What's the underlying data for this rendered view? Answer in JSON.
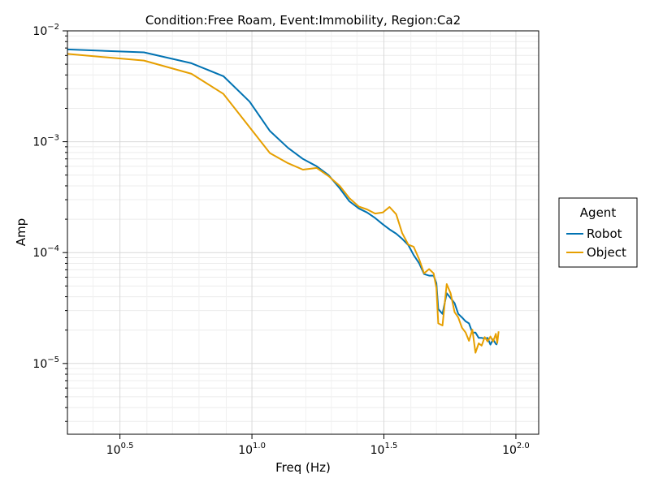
{
  "chart_data": {
    "type": "line",
    "title": "Condition:Free Roam, Event:Immobility, Region:Ca2",
    "xlabel": "Freq (Hz)",
    "ylabel": "Amp",
    "x_scale": "log10",
    "y_scale": "log10",
    "xlim": [
      2,
      122
    ],
    "ylim": [
      2.3e-06,
      0.01
    ],
    "x_ticks": [
      {
        "value": 3.162,
        "base": "10",
        "exp": "0.5"
      },
      {
        "value": 10,
        "base": "10",
        "exp": "1.0"
      },
      {
        "value": 31.62,
        "base": "10",
        "exp": "1.5"
      },
      {
        "value": 100,
        "base": "10",
        "exp": "2.0"
      }
    ],
    "y_ticks": [
      {
        "value": 1e-05,
        "base": "10",
        "exp": "−5"
      },
      {
        "value": 0.0001,
        "base": "10",
        "exp": "−4"
      },
      {
        "value": 0.001,
        "base": "10",
        "exp": "−3"
      },
      {
        "value": 0.01,
        "base": "10",
        "exp": "−2"
      }
    ],
    "grid": true,
    "legend": {
      "title": "Agent",
      "placement": "right"
    },
    "series": [
      {
        "name": "Robot",
        "color": "#0072b2",
        "points": [
          [
            2.0,
            0.0068
          ],
          [
            3.9,
            0.0064
          ],
          [
            5.9,
            0.0051
          ],
          [
            7.8,
            0.0039
          ],
          [
            9.8,
            0.0023
          ],
          [
            11.7,
            0.00125
          ],
          [
            13.7,
            0.00088
          ],
          [
            15.6,
            0.0007
          ],
          [
            17.6,
            0.0006
          ],
          [
            19.5,
            0.0005
          ],
          [
            21.5,
            0.00038
          ],
          [
            23.4,
            0.00029
          ],
          [
            25.4,
            0.00025
          ],
          [
            27.3,
            0.00023
          ],
          [
            29.3,
            0.000205
          ],
          [
            31.3,
            0.00018
          ],
          [
            33.2,
            0.000162
          ],
          [
            35.2,
            0.000148
          ],
          [
            37.1,
            0.000133
          ],
          [
            39.1,
            0.000117
          ],
          [
            41.0,
            9.5e-05
          ],
          [
            43.0,
            8e-05
          ],
          [
            44.9,
            6.4e-05
          ],
          [
            46.9,
            6.2e-05
          ],
          [
            48.8,
            6.2e-05
          ],
          [
            50.0,
            5.3e-05
          ],
          [
            50.8,
            3.1e-05
          ],
          [
            52.7,
            2.8e-05
          ],
          [
            54.7,
            4.3e-05
          ],
          [
            56.6,
            3.9e-05
          ],
          [
            58.6,
            3.5e-05
          ],
          [
            60.5,
            2.8e-05
          ],
          [
            62.5,
            2.6e-05
          ],
          [
            64.5,
            2.4e-05
          ],
          [
            66.4,
            2.3e-05
          ],
          [
            68.4,
            1.9e-05
          ],
          [
            70.3,
            1.9e-05
          ],
          [
            72.3,
            1.7e-05
          ],
          [
            74.2,
            1.7e-05
          ],
          [
            76.2,
            1.68e-05
          ],
          [
            78.1,
            1.7e-05
          ],
          [
            80.1,
            1.48e-05
          ],
          [
            82.0,
            1.65e-05
          ],
          [
            84.0,
            1.5e-05
          ],
          [
            85.0,
            1.48e-05
          ]
        ]
      },
      {
        "name": "Object",
        "color": "#e69f00",
        "points": [
          [
            2.0,
            0.0062
          ],
          [
            3.9,
            0.0054
          ],
          [
            5.9,
            0.0041
          ],
          [
            7.8,
            0.0027
          ],
          [
            9.8,
            0.00135
          ],
          [
            11.7,
            0.00079
          ],
          [
            13.7,
            0.00064
          ],
          [
            15.6,
            0.00056
          ],
          [
            17.6,
            0.00058
          ],
          [
            19.5,
            0.00049
          ],
          [
            21.5,
            0.0004
          ],
          [
            23.4,
            0.00031
          ],
          [
            25.4,
            0.00026
          ],
          [
            27.3,
            0.000245
          ],
          [
            29.3,
            0.000225
          ],
          [
            31.3,
            0.00023
          ],
          [
            33.2,
            0.000258
          ],
          [
            35.2,
            0.000222
          ],
          [
            37.1,
            0.00015
          ],
          [
            39.1,
            0.000118
          ],
          [
            41.0,
            0.000113
          ],
          [
            43.0,
            8.7e-05
          ],
          [
            44.9,
            6.5e-05
          ],
          [
            46.9,
            7.1e-05
          ],
          [
            48.8,
            6.5e-05
          ],
          [
            50.0,
            4.8e-05
          ],
          [
            50.8,
            2.3e-05
          ],
          [
            52.7,
            2.2e-05
          ],
          [
            54.7,
            5.2e-05
          ],
          [
            56.6,
            4.3e-05
          ],
          [
            58.6,
            2.9e-05
          ],
          [
            60.5,
            2.6e-05
          ],
          [
            62.5,
            2.1e-05
          ],
          [
            64.5,
            1.9e-05
          ],
          [
            66.4,
            1.6e-05
          ],
          [
            68.4,
            2.02e-05
          ],
          [
            70.3,
            1.25e-05
          ],
          [
            72.3,
            1.52e-05
          ],
          [
            74.2,
            1.45e-05
          ],
          [
            76.2,
            1.73e-05
          ],
          [
            78.1,
            1.58e-05
          ],
          [
            80.1,
            1.75e-05
          ],
          [
            82.0,
            1.58e-05
          ],
          [
            84.0,
            1.85e-05
          ],
          [
            85.0,
            1.53e-05
          ],
          [
            86.0,
            1.95e-05
          ]
        ]
      }
    ]
  }
}
